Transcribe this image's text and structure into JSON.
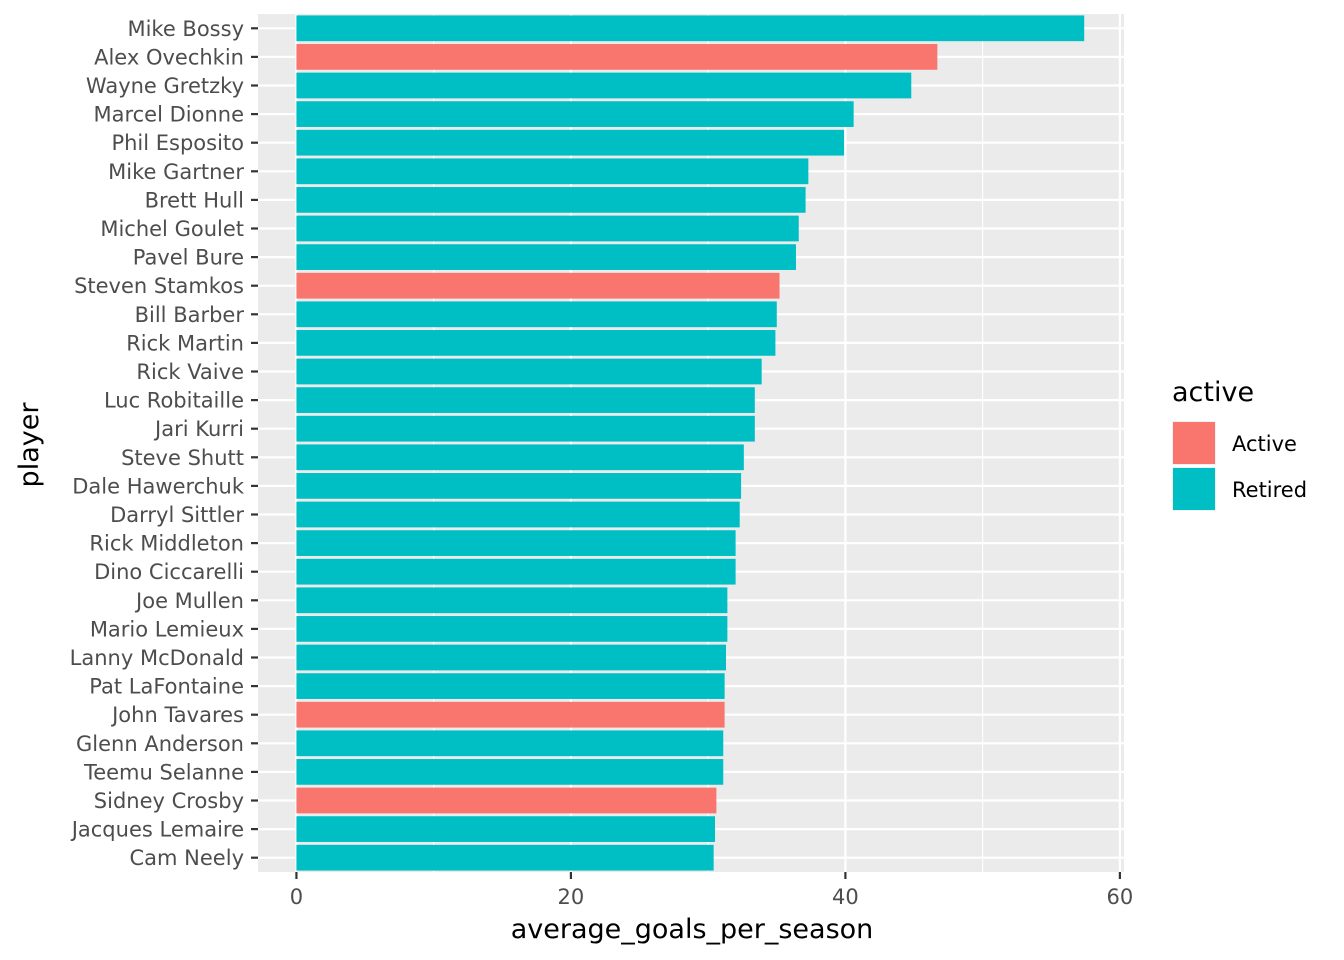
{
  "chart_data": {
    "type": "bar",
    "orientation": "horizontal",
    "title": "",
    "xlabel": "average_goals_per_season",
    "ylabel": "player",
    "xlim": [
      -2.8,
      60.3
    ],
    "xticks": [
      0,
      20,
      40,
      60
    ],
    "grid": true,
    "legend": {
      "title": "active",
      "placement": "right",
      "entries": [
        {
          "label": "Active",
          "color": "#F8766D"
        },
        {
          "label": "Retired",
          "color": "#00BFC4"
        }
      ]
    },
    "colors": {
      "Active": "#F8766D",
      "Retired": "#00BFC4"
    },
    "categories": [
      "Mike Bossy",
      "Alex Ovechkin",
      "Wayne Gretzky",
      "Marcel Dionne",
      "Phil Esposito",
      "Mike Gartner",
      "Brett Hull",
      "Michel Goulet",
      "Pavel Bure",
      "Steven Stamkos",
      "Bill Barber",
      "Rick Martin",
      "Rick Vaive",
      "Luc Robitaille",
      "Jari Kurri",
      "Steve Shutt",
      "Dale Hawerchuk",
      "Darryl Sittler",
      "Rick Middleton",
      "Dino Ciccarelli",
      "Joe Mullen",
      "Mario Lemieux",
      "Lanny McDonald",
      "Pat LaFontaine",
      "John Tavares",
      "Glenn Anderson",
      "Teemu Selanne",
      "Sidney Crosby",
      "Jacques Lemaire",
      "Cam Neely"
    ],
    "values": [
      57.4,
      46.7,
      44.8,
      40.6,
      39.9,
      37.3,
      37.1,
      36.6,
      36.4,
      35.2,
      35.0,
      34.9,
      33.9,
      33.4,
      33.4,
      32.6,
      32.4,
      32.3,
      32.0,
      32.0,
      31.4,
      31.4,
      31.3,
      31.2,
      31.2,
      31.1,
      31.1,
      30.6,
      30.5,
      30.4
    ],
    "status": [
      "Retired",
      "Active",
      "Retired",
      "Retired",
      "Retired",
      "Retired",
      "Retired",
      "Retired",
      "Retired",
      "Active",
      "Retired",
      "Retired",
      "Retired",
      "Retired",
      "Retired",
      "Retired",
      "Retired",
      "Retired",
      "Retired",
      "Retired",
      "Retired",
      "Retired",
      "Retired",
      "Retired",
      "Active",
      "Retired",
      "Retired",
      "Active",
      "Retired",
      "Retired"
    ]
  }
}
